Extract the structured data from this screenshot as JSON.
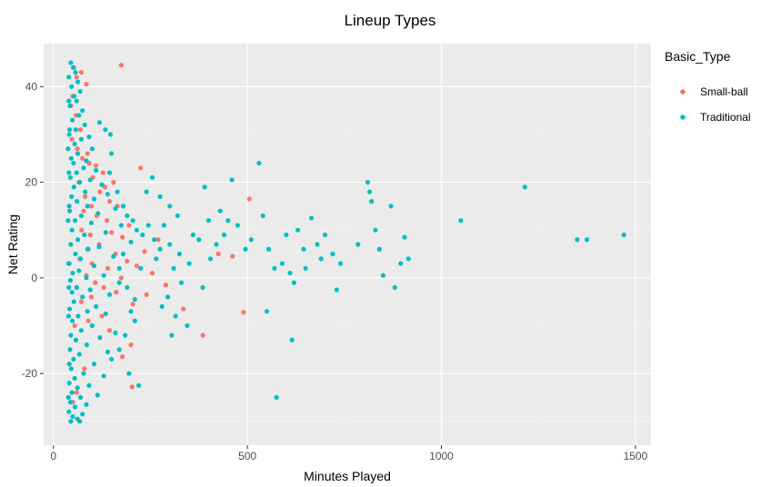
{
  "chart_data": {
    "type": "scatter",
    "title": "Lineup Types",
    "xlabel": "Minutes Played",
    "ylabel": "Net Rating",
    "xlim": [
      -25,
      1540
    ],
    "ylim": [
      -35,
      49
    ],
    "x_ticks": [
      {
        "value": 0,
        "label": "0"
      },
      {
        "value": 500,
        "label": "500"
      },
      {
        "value": 1000,
        "label": "1000"
      },
      {
        "value": 1500,
        "label": "1500"
      }
    ],
    "y_ticks": [
      {
        "value": -20,
        "label": "-20"
      },
      {
        "value": 0,
        "label": "0"
      },
      {
        "value": 20,
        "label": "20"
      },
      {
        "value": 40,
        "label": "40"
      }
    ],
    "grid": true,
    "legend": {
      "title": "Basic_Type",
      "position": "right"
    },
    "series": [
      {
        "name": "Small-ball",
        "color": "#F8766D",
        "points": [
          [
            175,
            44.5
          ],
          [
            53,
            44
          ],
          [
            72,
            43
          ],
          [
            60,
            42
          ],
          [
            85,
            40.5
          ],
          [
            50,
            38
          ],
          [
            45,
            36
          ],
          [
            58,
            34
          ],
          [
            70,
            31
          ],
          [
            48,
            29
          ],
          [
            62,
            27
          ],
          [
            88,
            26
          ],
          [
            75,
            25
          ],
          [
            92,
            24
          ],
          [
            110,
            23.5
          ],
          [
            225,
            23
          ],
          [
            128,
            22
          ],
          [
            102,
            21
          ],
          [
            66,
            20
          ],
          [
            155,
            20
          ],
          [
            133,
            19
          ],
          [
            120,
            18
          ],
          [
            82,
            17
          ],
          [
            505,
            16.5
          ],
          [
            145,
            16
          ],
          [
            98,
            15
          ],
          [
            165,
            15
          ],
          [
            78,
            14
          ],
          [
            112,
            13
          ],
          [
            138,
            12
          ],
          [
            195,
            11
          ],
          [
            73,
            10
          ],
          [
            150,
            9.5
          ],
          [
            95,
            9
          ],
          [
            178,
            8.5
          ],
          [
            270,
            8
          ],
          [
            118,
            7
          ],
          [
            88,
            6
          ],
          [
            235,
            5.5
          ],
          [
            160,
            5
          ],
          [
            425,
            5
          ],
          [
            462,
            4.5
          ],
          [
            68,
            4
          ],
          [
            190,
            3.5
          ],
          [
            100,
            3
          ],
          [
            215,
            2.5
          ],
          [
            140,
            2
          ],
          [
            255,
            1
          ],
          [
            85,
            0.5
          ],
          [
            175,
            0
          ],
          [
            108,
            -1
          ],
          [
            290,
            -1.5
          ],
          [
            130,
            -2
          ],
          [
            162,
            -3
          ],
          [
            240,
            -3.5
          ],
          [
            98,
            -4
          ],
          [
            72,
            -5
          ],
          [
            205,
            -5.5
          ],
          [
            335,
            -6.5
          ],
          [
            490,
            -7.2
          ],
          [
            125,
            -8
          ],
          [
            90,
            -9
          ],
          [
            55,
            -10
          ],
          [
            145,
            -11
          ],
          [
            385,
            -12
          ],
          [
            200,
            -14
          ],
          [
            178,
            -16.5
          ],
          [
            80,
            -19
          ],
          [
            203,
            -22.8
          ],
          [
            60,
            -24
          ],
          [
            50,
            -26
          ]
        ]
      },
      {
        "name": "Traditional",
        "color": "#00BFC4",
        "points": [
          [
            45,
            45
          ],
          [
            51,
            44
          ],
          [
            57,
            43
          ],
          [
            40,
            42
          ],
          [
            63,
            41
          ],
          [
            47,
            40
          ],
          [
            69,
            39
          ],
          [
            54,
            38
          ],
          [
            60,
            37
          ],
          [
            43,
            36
          ],
          [
            75,
            35
          ],
          [
            66,
            34
          ],
          [
            49,
            33
          ],
          [
            81,
            32
          ],
          [
            58,
            31
          ],
          [
            41,
            30
          ],
          [
            92,
            29.5
          ],
          [
            72,
            29
          ],
          [
            55,
            28
          ],
          [
            100,
            27
          ],
          [
            63,
            26
          ],
          [
            46,
            25
          ],
          [
            85,
            24.5
          ],
          [
            52,
            24
          ],
          [
            78,
            23
          ],
          [
            110,
            22.5
          ],
          [
            60,
            22
          ],
          [
            44,
            21
          ],
          [
            95,
            20.5
          ],
          [
            68,
            20
          ],
          [
            125,
            19.5
          ],
          [
            53,
            19
          ],
          [
            82,
            18
          ],
          [
            140,
            17.5
          ],
          [
            47,
            17
          ],
          [
            105,
            16.5
          ],
          [
            61,
            16
          ],
          [
            88,
            15
          ],
          [
            160,
            14.5
          ],
          [
            42,
            14
          ],
          [
            115,
            13.5
          ],
          [
            72,
            13
          ],
          [
            56,
            12
          ],
          [
            98,
            11.5
          ],
          [
            175,
            11
          ],
          [
            48,
            10
          ],
          [
            135,
            9.5
          ],
          [
            80,
            9
          ],
          [
            63,
            8
          ],
          [
            200,
            7.5
          ],
          [
            45,
            7
          ],
          [
            118,
            6.5
          ],
          [
            90,
            6
          ],
          [
            57,
            5
          ],
          [
            155,
            4.5
          ],
          [
            70,
            4
          ],
          [
            41,
            3
          ],
          [
            105,
            2.5
          ],
          [
            225,
            2
          ],
          [
            66,
            1.5
          ],
          [
            50,
            1
          ],
          [
            130,
            0.5
          ],
          [
            85,
            0
          ],
          [
            44,
            -0.5
          ],
          [
            170,
            -1
          ],
          [
            60,
            -2
          ],
          [
            95,
            -2.5
          ],
          [
            48,
            -3
          ],
          [
            145,
            -3.5
          ],
          [
            75,
            -4
          ],
          [
            210,
            -4.5
          ],
          [
            53,
            -5
          ],
          [
            110,
            -6
          ],
          [
            42,
            -6.5
          ],
          [
            88,
            -7
          ],
          [
            135,
            -7.5
          ],
          [
            64,
            -8
          ],
          [
            49,
            -9
          ],
          [
            100,
            -10
          ],
          [
            72,
            -11
          ],
          [
            160,
            -11.5
          ],
          [
            45,
            -12
          ],
          [
            120,
            -12.5
          ],
          [
            58,
            -13
          ],
          [
            86,
            -14
          ],
          [
            43,
            -15
          ],
          [
            140,
            -15.5
          ],
          [
            67,
            -16
          ],
          [
            52,
            -17
          ],
          [
            105,
            -18
          ],
          [
            46,
            -19
          ],
          [
            78,
            -20
          ],
          [
            130,
            -20.5
          ],
          [
            55,
            -21
          ],
          [
            41,
            -22
          ],
          [
            92,
            -22.5
          ],
          [
            62,
            -23
          ],
          [
            48,
            -24
          ],
          [
            114,
            -24.5
          ],
          [
            70,
            -25
          ],
          [
            44,
            -26
          ],
          [
            85,
            -26.5
          ],
          [
            56,
            -27
          ],
          [
            40,
            -28
          ],
          [
            75,
            -28.5
          ],
          [
            50,
            -29
          ],
          [
            62,
            -29.5
          ],
          [
            45,
            -30
          ],
          [
            68,
            -30
          ],
          [
            42,
            31
          ],
          [
            38,
            12
          ],
          [
            39,
            -8
          ],
          [
            40,
            22
          ],
          [
            39,
            3
          ],
          [
            41,
            -18
          ],
          [
            40,
            37
          ],
          [
            39,
            -25
          ],
          [
            41,
            15
          ],
          [
            40,
            -2
          ],
          [
            38,
            27
          ],
          [
            147,
            30
          ],
          [
            134,
            31
          ],
          [
            119,
            32.5
          ],
          [
            150,
            26
          ],
          [
            145,
            22
          ],
          [
            165,
            18
          ],
          [
            180,
            15
          ],
          [
            190,
            13
          ],
          [
            205,
            12
          ],
          [
            215,
            10
          ],
          [
            230,
            9
          ],
          [
            245,
            11
          ],
          [
            260,
            8
          ],
          [
            275,
            6
          ],
          [
            180,
            5
          ],
          [
            170,
            2
          ],
          [
            190,
            -2
          ],
          [
            200,
            -7
          ],
          [
            210,
            -9
          ],
          [
            185,
            -12
          ],
          [
            170,
            -15
          ],
          [
            195,
            -20
          ],
          [
            220,
            -22.5
          ],
          [
            150,
            -17
          ],
          [
            255,
            21
          ],
          [
            240,
            18
          ],
          [
            275,
            17
          ],
          [
            300,
            15
          ],
          [
            320,
            13
          ],
          [
            285,
            11
          ],
          [
            265,
            4
          ],
          [
            300,
            7
          ],
          [
            310,
            2
          ],
          [
            330,
            -1
          ],
          [
            295,
            -4
          ],
          [
            280,
            -6
          ],
          [
            315,
            -8
          ],
          [
            345,
            -10
          ],
          [
            305,
            -12
          ],
          [
            325,
            5
          ],
          [
            360,
            9
          ],
          [
            350,
            3
          ],
          [
            375,
            8
          ],
          [
            390,
            19
          ],
          [
            400,
            12
          ],
          [
            405,
            4
          ],
          [
            385,
            -2
          ],
          [
            420,
            7
          ],
          [
            440,
            9
          ],
          [
            430,
            14
          ],
          [
            450,
            12
          ],
          [
            460,
            20.5
          ],
          [
            475,
            11
          ],
          [
            495,
            6
          ],
          [
            510,
            8
          ],
          [
            530,
            24
          ],
          [
            540,
            13
          ],
          [
            555,
            6
          ],
          [
            570,
            2
          ],
          [
            550,
            -7
          ],
          [
            575,
            -25
          ],
          [
            590,
            3
          ],
          [
            600,
            9
          ],
          [
            610,
            1
          ],
          [
            620,
            -1
          ],
          [
            615,
            -13
          ],
          [
            630,
            10
          ],
          [
            645,
            6
          ],
          [
            650,
            2
          ],
          [
            665,
            12.5
          ],
          [
            680,
            7
          ],
          [
            690,
            4
          ],
          [
            700,
            9
          ],
          [
            720,
            5
          ],
          [
            730,
            -2.5
          ],
          [
            740,
            3
          ],
          [
            785,
            7
          ],
          [
            810,
            20
          ],
          [
            815,
            18
          ],
          [
            820,
            16
          ],
          [
            830,
            10
          ],
          [
            840,
            6
          ],
          [
            850,
            0.5
          ],
          [
            870,
            15
          ],
          [
            880,
            -2
          ],
          [
            895,
            3
          ],
          [
            905,
            8.5
          ],
          [
            915,
            4
          ],
          [
            1050,
            12
          ],
          [
            1215,
            19
          ],
          [
            1350,
            8
          ],
          [
            1375,
            8
          ],
          [
            1470,
            9
          ]
        ]
      }
    ]
  }
}
